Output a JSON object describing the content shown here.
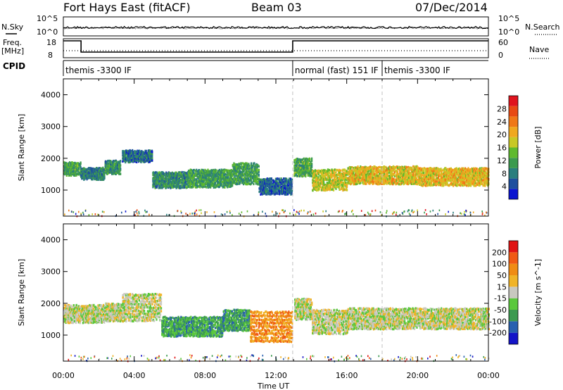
{
  "header": {
    "title": "Fort Hays East (fitACF)",
    "beam": "Beam 03",
    "date": "07/Dec/2014"
  },
  "nsky_panel": {
    "left_label": "N.Sky",
    "right_label": "N.Search",
    "left_ticks": [
      "10^5",
      "10^0"
    ],
    "right_ticks": [
      "10^5",
      "10^0"
    ]
  },
  "freq_panel": {
    "left_label_line1": "Freq.",
    "left_label_line2": "[MHz]",
    "right_label": "Nave",
    "left_ticks": [
      "18",
      "8"
    ],
    "right_ticks": [
      "60",
      "0"
    ]
  },
  "cpid_panel": {
    "label": "CPID",
    "segments": [
      {
        "text": "themis -3300 IF",
        "start_hour": 0
      },
      {
        "text": "normal (fast) 151 IF",
        "start_hour": 12.95
      },
      {
        "text": "themis -3300 IF",
        "start_hour": 18
      }
    ]
  },
  "chart_data": [
    {
      "type": "heatmap",
      "name": "power",
      "ylabel": "Slant Range [km]",
      "yticks": [
        "4000",
        "3000",
        "2000",
        "1000"
      ],
      "xrange_hours": [
        0,
        24
      ],
      "yrange_km": [
        180,
        4500
      ],
      "colorbar": {
        "label": "Power [dB]",
        "ticks": [
          "28",
          "24",
          "20",
          "16",
          "12",
          "8",
          "4"
        ],
        "colors": [
          "#0a14d0",
          "#1e4f9e",
          "#2a7e7e",
          "#3c9a4e",
          "#5fba2e",
          "#c8c826",
          "#f0a820",
          "#f07818",
          "#e84a14",
          "#e0141e"
        ]
      },
      "bands": [
        {
          "t0": 0.0,
          "t1": 0.95,
          "r_center": 1700,
          "r_half": 180,
          "level": 0.38
        },
        {
          "t0": 0.95,
          "t1": 2.3,
          "r_center": 1550,
          "r_half": 160,
          "level": 0.25
        },
        {
          "t0": 2.3,
          "t1": 3.2,
          "r_center": 1750,
          "r_half": 180,
          "level": 0.3
        },
        {
          "t0": 3.3,
          "t1": 5.0,
          "r_center": 2100,
          "r_half": 160,
          "level": 0.2
        },
        {
          "t0": 5.0,
          "t1": 7.0,
          "r_center": 1350,
          "r_half": 220,
          "level": 0.3
        },
        {
          "t0": 7.0,
          "t1": 9.5,
          "r_center": 1400,
          "r_half": 250,
          "level": 0.35
        },
        {
          "t0": 9.5,
          "t1": 11.0,
          "r_center": 1550,
          "r_half": 300,
          "level": 0.35
        },
        {
          "t0": 11.0,
          "t1": 12.9,
          "r_center": 1150,
          "r_half": 220,
          "level": 0.2
        },
        {
          "t0": 13.0,
          "t1": 14.0,
          "r_center": 1750,
          "r_half": 250,
          "level": 0.38
        },
        {
          "t0": 14.0,
          "t1": 16.0,
          "r_center": 1350,
          "r_half": 300,
          "level": 0.55
        },
        {
          "t0": 16.0,
          "t1": 20.0,
          "r_center": 1500,
          "r_half": 250,
          "level": 0.6
        },
        {
          "t0": 20.0,
          "t1": 24.0,
          "r_center": 1450,
          "r_half": 250,
          "level": 0.62
        }
      ]
    },
    {
      "type": "heatmap",
      "name": "velocity",
      "ylabel": "Slant Range [km]",
      "yticks": [
        "4000",
        "3000",
        "2000",
        "1000"
      ],
      "xrange_hours": [
        0,
        24
      ],
      "yrange_km": [
        180,
        4500
      ],
      "colorbar": {
        "label": "Velocity [m s^-1]",
        "ticks": [
          "200",
          "100",
          "50",
          "15",
          "-15",
          "-50",
          "-100",
          "-200"
        ],
        "colors": [
          "#1414c8",
          "#2860b0",
          "#3c9a50",
          "#5ac83c",
          "#c8c8c0",
          "#f0b428",
          "#f08c14",
          "#f05a14",
          "#e01414"
        ]
      },
      "bands": [
        {
          "t0": 0.0,
          "t1": 2.3,
          "r_center": 1700,
          "r_half": 250,
          "level": 0.5
        },
        {
          "t0": 2.3,
          "t1": 3.3,
          "r_center": 1750,
          "r_half": 250,
          "level": 0.5
        },
        {
          "t0": 3.3,
          "t1": 5.5,
          "r_center": 1900,
          "r_half": 400,
          "level": 0.5
        },
        {
          "t0": 5.5,
          "t1": 9.0,
          "r_center": 1300,
          "r_half": 280,
          "level": 0.3
        },
        {
          "t0": 9.0,
          "t1": 10.5,
          "r_center": 1500,
          "r_half": 300,
          "level": 0.3
        },
        {
          "t0": 10.5,
          "t1": 12.9,
          "r_center": 1300,
          "r_half": 450,
          "level": 0.72
        },
        {
          "t0": 13.0,
          "t1": 14.0,
          "r_center": 1850,
          "r_half": 300,
          "level": 0.5
        },
        {
          "t0": 14.0,
          "t1": 16.0,
          "r_center": 1450,
          "r_half": 350,
          "level": 0.5
        },
        {
          "t0": 16.0,
          "t1": 24.0,
          "r_center": 1550,
          "r_half": 300,
          "level": 0.5
        }
      ]
    }
  ],
  "xaxis": {
    "label": "Time UT",
    "ticks": [
      "00:00",
      "04:00",
      "08:00",
      "12:00",
      "16:00",
      "20:00",
      "00:00"
    ]
  }
}
